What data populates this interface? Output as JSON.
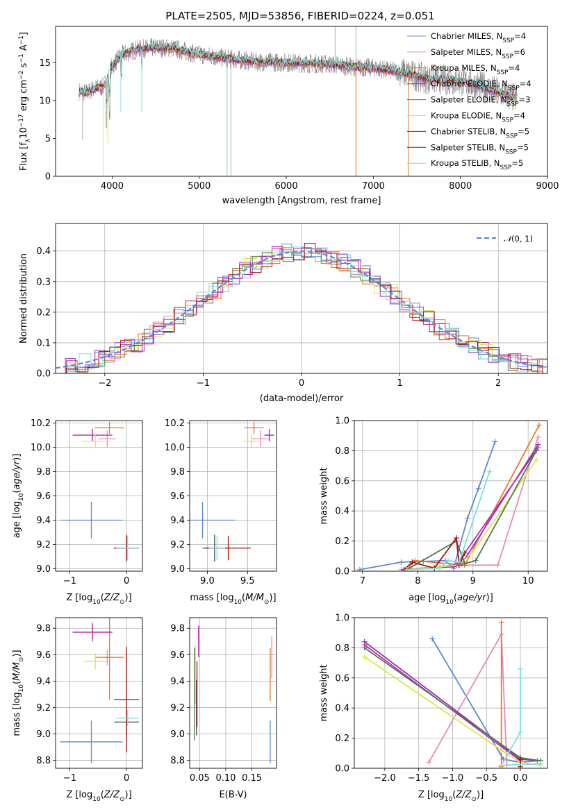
{
  "figure": {
    "title": "PLATE=2505, MJD=53856, FIBERID=0224, z=0.051"
  },
  "palette": {
    "chabrier_miles": "#5b87d8",
    "salpeter_miles": "#e98ac0",
    "kroupa_miles": "#e8792b",
    "chabrier_elodie": "#9b2bb8",
    "salpeter_elodie": "#b92fb0",
    "kroupa_elodie": "#d8ea45",
    "chabrier_stelib": "#4a7a4a",
    "salpeter_stelib": "#a60f12",
    "kroupa_stelib": "#7fdde0",
    "data": "#888888",
    "grid": "#b0b0b0"
  },
  "chart_data": [
    {
      "id": "spectrum",
      "type": "line",
      "xlabel": "wavelength [Angstrom, rest frame]",
      "ylabel": "Flux [f_λ 10^-17 erg cm^-2 s^-1 A^-1]",
      "xlim": [
        3350,
        9000
      ],
      "ylim": [
        0,
        19.8
      ],
      "xticks": [
        4000,
        5000,
        6000,
        7000,
        8000,
        9000
      ],
      "yticks": [
        0,
        5,
        10,
        15
      ],
      "grid": false,
      "legend_position": "top-right",
      "continuum_data": [
        [
          3620,
          11.2
        ],
        [
          3700,
          11.0
        ],
        [
          3800,
          11.6
        ],
        [
          3900,
          11.8
        ],
        [
          3950,
          13.0
        ],
        [
          4000,
          14.5
        ],
        [
          4100,
          16.0
        ],
        [
          4300,
          16.8
        ],
        [
          4500,
          17.0
        ],
        [
          4700,
          16.9
        ],
        [
          4900,
          16.3
        ],
        [
          5100,
          15.9
        ],
        [
          5300,
          15.6
        ],
        [
          5500,
          15.3
        ],
        [
          5700,
          15.1
        ],
        [
          6000,
          15.0
        ],
        [
          6300,
          14.9
        ],
        [
          6500,
          14.8
        ],
        [
          6800,
          14.4
        ],
        [
          7000,
          14.3
        ],
        [
          7300,
          13.8
        ],
        [
          7400,
          13.5
        ],
        [
          7600,
          12.9
        ],
        [
          8000,
          12.6
        ],
        [
          8200,
          12.0
        ],
        [
          8400,
          11.2
        ],
        [
          8600,
          10.4
        ],
        [
          8650,
          10.3
        ]
      ],
      "legend": [
        {
          "label": "Chabrier MILES, N",
          "sub": "SSP",
          "suffix": "=4",
          "color": "#5b87d8"
        },
        {
          "label": "Salpeter MILES, N",
          "sub": "SSP",
          "suffix": "=6",
          "color": "#e98ac0"
        },
        {
          "label": "Kroupa MILES, N",
          "sub": "SSP",
          "suffix": "=4",
          "color": "#e8792b"
        },
        {
          "label": "Chabrier ELODIE, N",
          "sub": "SSP",
          "suffix": "=4",
          "color": "#9b2bb8"
        },
        {
          "label": "Salpeter ELODIE, N",
          "sub": "SSP",
          "suffix": "=3",
          "color": "#b92fb0"
        },
        {
          "label": "Kroupa ELODIE, N",
          "sub": "SSP",
          "suffix": "=4",
          "color": "#d8ea45"
        },
        {
          "label": "Chabrier STELIB, N",
          "sub": "SSP",
          "suffix": "=5",
          "color": "#444444"
        },
        {
          "label": "Salpeter STELIB, N",
          "sub": "SSP",
          "suffix": "=5",
          "color": "#a60f12"
        },
        {
          "label": "Kroupa STELIB, N",
          "sub": "SSP",
          "suffix": "=5",
          "color": "#7fdde0"
        }
      ]
    },
    {
      "id": "residuals",
      "type": "line",
      "xlabel": "(data-model)/error",
      "ylabel": "Normed distribution",
      "xlim": [
        -2.5,
        2.5
      ],
      "ylim": [
        0,
        0.49
      ],
      "xticks": [
        -2,
        -1,
        0,
        1,
        2
      ],
      "yticks": [
        0.0,
        0.1,
        0.2,
        0.3,
        0.4
      ],
      "grid": true,
      "legend": "N(0,1)",
      "legend_position": "top-right"
    },
    {
      "id": "age-vs-Z",
      "type": "scatter",
      "xlabel": "Z [log10(Z/Z_sun)]",
      "ylabel": "age [log10(age/yr)]",
      "xlim": [
        -1.25,
        0.28
      ],
      "ylim": [
        8.98,
        10.22
      ],
      "xticks": [
        -1,
        0
      ],
      "yticks": [
        9.0,
        9.2,
        9.4,
        9.6,
        9.8,
        10.0,
        10.2
      ],
      "grid": true,
      "points": [
        {
          "x": -0.62,
          "y": 9.4,
          "xerr": 0.55,
          "yerr": 0.15,
          "color": "#5b87d8"
        },
        {
          "x": -0.34,
          "y": 10.07,
          "xerr": 0.15,
          "yerr": 0.07,
          "color": "#e98ac0"
        },
        {
          "x": -0.3,
          "y": 10.16,
          "xerr": 0.26,
          "yerr": 0.05,
          "color": "#e8792b"
        },
        {
          "x": -0.6,
          "y": 10.1,
          "xerr": 0.35,
          "yerr": 0.05,
          "color": "#9b2bb8"
        },
        {
          "x": -0.6,
          "y": 10.1,
          "xerr": 0.35,
          "yerr": 0.05,
          "color": "#b92fb0"
        },
        {
          "x": -0.55,
          "y": 10.05,
          "xerr": 0.25,
          "yerr": 0.06,
          "color": "#d8ea45"
        },
        {
          "x": 0.0,
          "y": 9.17,
          "xerr": 0.22,
          "yerr": 0.11,
          "color": "#444444"
        },
        {
          "x": 0.0,
          "y": 9.17,
          "xerr": 0.22,
          "yerr": 0.1,
          "color": "#a60f12"
        },
        {
          "x": 0.02,
          "y": 9.17,
          "xerr": 0.2,
          "yerr": 0.1,
          "color": "#7fdde0"
        }
      ]
    },
    {
      "id": "age-vs-mass",
      "type": "scatter",
      "xlabel": "mass [log10(M/M_sun)]",
      "ylabel": "",
      "xlim": [
        8.78,
        9.86
      ],
      "ylim": [
        8.98,
        10.22
      ],
      "xticks": [
        9.0,
        9.5
      ],
      "yticks": [
        9.0,
        9.2,
        9.4,
        9.6,
        9.8,
        10.0,
        10.2
      ],
      "grid": true,
      "points": [
        {
          "x": 8.94,
          "y": 9.4,
          "xerr": 0.4,
          "yerr": 0.15,
          "color": "#5b87d8"
        },
        {
          "x": 9.66,
          "y": 10.07,
          "xerr": 0.1,
          "yerr": 0.07,
          "color": "#e98ac0"
        },
        {
          "x": 9.58,
          "y": 10.16,
          "xerr": 0.12,
          "yerr": 0.05,
          "color": "#e8792b"
        },
        {
          "x": 9.77,
          "y": 10.1,
          "xerr": 0.06,
          "yerr": 0.05,
          "color": "#9b2bb8"
        },
        {
          "x": 9.77,
          "y": 10.1,
          "xerr": 0.06,
          "yerr": 0.05,
          "color": "#b92fb0"
        },
        {
          "x": 9.55,
          "y": 10.05,
          "xerr": 0.12,
          "yerr": 0.06,
          "color": "#d8ea45"
        },
        {
          "x": 9.09,
          "y": 9.17,
          "xerr": 0.15,
          "yerr": 0.11,
          "color": "#444444"
        },
        {
          "x": 9.26,
          "y": 9.17,
          "xerr": 0.28,
          "yerr": 0.1,
          "color": "#a60f12"
        },
        {
          "x": 9.12,
          "y": 9.17,
          "xerr": 0.1,
          "yerr": 0.1,
          "color": "#7fdde0"
        }
      ]
    },
    {
      "id": "massweight-vs-age",
      "type": "line",
      "xlabel": "age [log10(age/yr)]",
      "ylabel": "mass weight",
      "xlim": [
        6.85,
        10.35
      ],
      "ylim": [
        0,
        1.0
      ],
      "xticks": [
        7,
        8,
        9,
        10
      ],
      "yticks": [
        0.0,
        0.2,
        0.4,
        0.6,
        0.8,
        1.0
      ],
      "grid": true,
      "series": [
        {
          "color": "#5b87d8",
          "points": [
            [
              6.95,
              0.01
            ],
            [
              7.7,
              0.06
            ],
            [
              8.1,
              0.065
            ],
            [
              8.5,
              0.07
            ],
            [
              8.65,
              0.02
            ],
            [
              8.9,
              0.35
            ],
            [
              9.1,
              0.55
            ],
            [
              9.4,
              0.86
            ]
          ]
        },
        {
          "color": "#e98ac0",
          "points": [
            [
              7.7,
              0.01
            ],
            [
              8.4,
              0.03
            ],
            [
              8.75,
              0.04
            ],
            [
              9.45,
              0.04
            ],
            [
              10.18,
              0.89
            ]
          ]
        },
        {
          "color": "#e8792b",
          "points": [
            [
              7.8,
              0.01
            ],
            [
              7.95,
              0.07
            ],
            [
              8.85,
              0.04
            ],
            [
              10.2,
              0.97
            ]
          ]
        },
        {
          "color": "#9b2bb8",
          "points": [
            [
              7.75,
              0.01
            ],
            [
              8.65,
              0.03
            ],
            [
              8.8,
              0.05
            ],
            [
              10.18,
              0.84
            ]
          ]
        },
        {
          "color": "#b92fb0",
          "points": [
            [
              7.75,
              0.01
            ],
            [
              8.7,
              0.04
            ],
            [
              10.18,
              0.82
            ]
          ]
        },
        {
          "color": "#d8ea45",
          "points": [
            [
              7.8,
              0.01
            ],
            [
              8.75,
              0.04
            ],
            [
              9.0,
              0.13
            ],
            [
              10.15,
              0.74
            ]
          ]
        },
        {
          "color": "#4a7a4a",
          "points": [
            [
              7.8,
              0.01
            ],
            [
              8.7,
              0.2
            ],
            [
              8.85,
              0.05
            ],
            [
              9.05,
              0.07
            ],
            [
              10.15,
              0.8
            ]
          ]
        },
        {
          "color": "#a60f12",
          "points": [
            [
              7.75,
              0.01
            ],
            [
              7.9,
              0.06
            ],
            [
              8.3,
              0.02
            ],
            [
              8.7,
              0.22
            ],
            [
              8.75,
              0.04
            ],
            [
              8.85,
              0.12
            ]
          ]
        },
        {
          "color": "#7fdde0",
          "points": [
            [
              7.8,
              0.01
            ],
            [
              8.4,
              0.02
            ],
            [
              8.55,
              0.07
            ],
            [
              8.75,
              0.06
            ],
            [
              9.3,
              0.66
            ]
          ]
        }
      ]
    },
    {
      "id": "mass-vs-Z",
      "type": "scatter",
      "xlabel": "Z [log10(Z/Z_sun)]",
      "ylabel": "mass [log10(M/M_sun)]",
      "xlim": [
        -1.25,
        0.28
      ],
      "ylim": [
        8.74,
        9.88
      ],
      "xticks": [
        -1,
        0
      ],
      "yticks": [
        8.8,
        9.0,
        9.2,
        9.4,
        9.6,
        9.8
      ],
      "grid": true,
      "points": [
        {
          "x": -0.62,
          "y": 8.94,
          "xerr": 0.55,
          "yerr": 0.16,
          "color": "#5b87d8"
        },
        {
          "x": -0.34,
          "y": 9.58,
          "xerr": 0.15,
          "yerr": 0.06,
          "color": "#e98ac0"
        },
        {
          "x": -0.3,
          "y": 9.58,
          "xerr": 0.26,
          "yerr": 0.32,
          "color": "#e8792b"
        },
        {
          "x": -0.6,
          "y": 9.77,
          "xerr": 0.35,
          "yerr": 0.07,
          "color": "#9b2bb8"
        },
        {
          "x": -0.6,
          "y": 9.77,
          "xerr": 0.35,
          "yerr": 0.05,
          "color": "#b92fb0"
        },
        {
          "x": -0.55,
          "y": 9.55,
          "xerr": 0.2,
          "yerr": 0.06,
          "color": "#d8ea45"
        },
        {
          "x": 0.0,
          "y": 9.09,
          "xerr": 0.22,
          "yerr": 0.1,
          "color": "#444444"
        },
        {
          "x": 0.0,
          "y": 9.26,
          "xerr": 0.22,
          "yerr": 0.4,
          "color": "#a60f12"
        },
        {
          "x": 0.02,
          "y": 9.12,
          "xerr": 0.2,
          "yerr": 0.06,
          "color": "#7fdde0"
        }
      ]
    },
    {
      "id": "mass-vs-ebv",
      "type": "scatter",
      "xlabel": "E(B-V)",
      "ylabel": "",
      "xlim": [
        0.031,
        0.197
      ],
      "ylim": [
        8.74,
        9.88
      ],
      "xticks": [
        0.05,
        0.1,
        0.15
      ],
      "ytick_labels": [
        "8.8",
        "9.0",
        "9.2",
        "9.4",
        "9.6",
        "9.8"
      ],
      "xtick_labels": [
        "0.05",
        "0.10",
        "0.15"
      ],
      "yticks": [
        8.8,
        9.0,
        9.2,
        9.4,
        9.6,
        9.8
      ],
      "grid": true,
      "points": [
        {
          "x": 0.185,
          "y": 8.94,
          "yerr": 0.16,
          "color": "#5b87d8"
        },
        {
          "x": 0.188,
          "y": 9.58,
          "yerr": 0.16,
          "color": "#e98ac0"
        },
        {
          "x": 0.185,
          "y": 9.45,
          "yerr": 0.2,
          "color": "#e8792b"
        },
        {
          "x": 0.048,
          "y": 9.7,
          "yerr": 0.12,
          "color": "#9b2bb8"
        },
        {
          "x": 0.048,
          "y": 9.7,
          "yerr": 0.1,
          "color": "#b92fb0"
        },
        {
          "x": 0.042,
          "y": 9.45,
          "yerr": 0.22,
          "color": "#d8ea45"
        },
        {
          "x": 0.044,
          "y": 9.2,
          "yerr": 0.21,
          "color": "#444444"
        },
        {
          "x": 0.045,
          "y": 9.3,
          "yerr": 0.25,
          "color": "#a60f12"
        },
        {
          "x": 0.04,
          "y": 9.3,
          "yerr": 0.35,
          "color": "#4a7a4a"
        }
      ]
    },
    {
      "id": "massweight-vs-Z",
      "type": "line",
      "xlabel": "Z [log10(Z/Z_sun)]",
      "ylabel": "mass weight",
      "xlim": [
        -2.45,
        0.4
      ],
      "ylim": [
        0,
        1.0
      ],
      "xticks": [
        -2.0,
        -1.5,
        -1.0,
        -0.5,
        0.0
      ],
      "xtick_labels": [
        "−2.0",
        "−1.5",
        "−1.0",
        "−0.5",
        "0.0"
      ],
      "yticks": [
        0.0,
        0.2,
        0.4,
        0.6,
        0.8,
        1.0
      ],
      "grid": true,
      "series": [
        {
          "color": "#5b87d8",
          "points": [
            [
              -1.3,
              0.86
            ],
            [
              -0.25,
              0.06
            ],
            [
              0.0,
              0.04
            ],
            [
              0.25,
              0.05
            ]
          ]
        },
        {
          "color": "#e98ac0",
          "points": [
            [
              -1.35,
              0.04
            ],
            [
              -0.28,
              0.89
            ],
            [
              -0.2,
              0.02
            ]
          ]
        },
        {
          "color": "#e8792b",
          "points": [
            [
              -0.28,
              0.97
            ],
            [
              -0.28,
              0.01
            ]
          ]
        },
        {
          "color": "#9b2bb8",
          "points": [
            [
              -2.3,
              0.84
            ],
            [
              0.0,
              0.06
            ],
            [
              0.3,
              0.05
            ]
          ]
        },
        {
          "color": "#b92fb0",
          "points": [
            [
              -2.3,
              0.82
            ],
            [
              0.0,
              0.05
            ]
          ]
        },
        {
          "color": "#d8ea45",
          "points": [
            [
              -2.3,
              0.74
            ],
            [
              -0.28,
              0.12
            ],
            [
              0.0,
              0.04
            ],
            [
              0.3,
              0.02
            ]
          ]
        },
        {
          "color": "#4a7a4a",
          "points": [
            [
              -2.3,
              0.8
            ],
            [
              0.0,
              0.07
            ],
            [
              0.3,
              0.05
            ]
          ]
        },
        {
          "color": "#a60f12",
          "points": [
            [
              0.0,
              0.01
            ],
            [
              0.0,
              0.06
            ]
          ]
        },
        {
          "color": "#7fdde0",
          "points": [
            [
              0.0,
              0.66
            ],
            [
              0.0,
              0.24
            ],
            [
              -0.28,
              0.02
            ],
            [
              0.3,
              0.03
            ]
          ]
        }
      ]
    }
  ]
}
